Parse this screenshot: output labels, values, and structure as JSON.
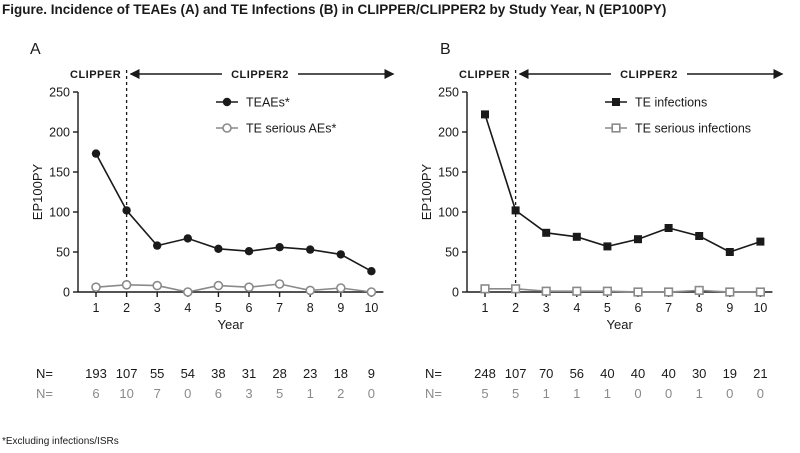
{
  "title": "Figure. Incidence of TEAEs (A) and TE Infections (B) in CLIPPER/CLIPPER2 by Study Year, N (EP100PY)",
  "footnote": "*Excluding infections/ISRs",
  "colors": {
    "dark": "#1a1a1a",
    "grey": "#8a8a8a"
  },
  "chart_data": [
    {
      "type": "line",
      "panel": "A",
      "ylabel": "EP100PY",
      "xlabel": "Year",
      "x": [
        1,
        2,
        3,
        4,
        5,
        6,
        7,
        8,
        9,
        10
      ],
      "ylim": [
        0,
        250
      ],
      "yticks": [
        0,
        50,
        100,
        150,
        200,
        250
      ],
      "era_labels": [
        "CLIPPER",
        "CLIPPER2"
      ],
      "divider_x": 2,
      "legend_position": "top-right",
      "series": [
        {
          "name": "TEAEs*",
          "marker": "filled-circle",
          "color": "#1a1a1a",
          "values": [
            173,
            102,
            58,
            67,
            54,
            51,
            56,
            53,
            47,
            26
          ]
        },
        {
          "name": "TE serious AEs*",
          "marker": "open-circle",
          "color": "#8a8a8a",
          "values": [
            6,
            9,
            8,
            0,
            8,
            6,
            10,
            2,
            5,
            0
          ]
        }
      ],
      "n_rows": [
        {
          "label": "N=",
          "color": "#1a1a1a",
          "values": [
            "193",
            "107",
            "55",
            "54",
            "38",
            "31",
            "28",
            "23",
            "18",
            "9"
          ]
        },
        {
          "label": "N=",
          "color": "#8a8a8a",
          "values": [
            "6",
            "10",
            "7",
            "0",
            "6",
            "3",
            "5",
            "1",
            "2",
            "0"
          ]
        }
      ]
    },
    {
      "type": "line",
      "panel": "B",
      "ylabel": "EP100PY",
      "xlabel": "Year",
      "x": [
        1,
        2,
        3,
        4,
        5,
        6,
        7,
        8,
        9,
        10
      ],
      "ylim": [
        0,
        250
      ],
      "yticks": [
        0,
        50,
        100,
        150,
        200,
        250
      ],
      "era_labels": [
        "CLIPPER",
        "CLIPPER2"
      ],
      "divider_x": 2,
      "legend_position": "top-right",
      "series": [
        {
          "name": "TE infections",
          "marker": "filled-square",
          "color": "#1a1a1a",
          "values": [
            222,
            102,
            74,
            69,
            57,
            66,
            80,
            70,
            50,
            63
          ]
        },
        {
          "name": "TE serious infections",
          "marker": "open-square",
          "color": "#8a8a8a",
          "values": [
            4,
            4,
            1,
            1,
            1,
            0,
            0,
            2,
            0,
            0
          ]
        }
      ],
      "n_rows": [
        {
          "label": "N=",
          "color": "#1a1a1a",
          "values": [
            "248",
            "107",
            "70",
            "56",
            "40",
            "40",
            "40",
            "30",
            "19",
            "21"
          ]
        },
        {
          "label": "N=",
          "color": "#8a8a8a",
          "values": [
            "5",
            "5",
            "1",
            "1",
            "1",
            "0",
            "0",
            "1",
            "0",
            "0"
          ]
        }
      ]
    }
  ]
}
